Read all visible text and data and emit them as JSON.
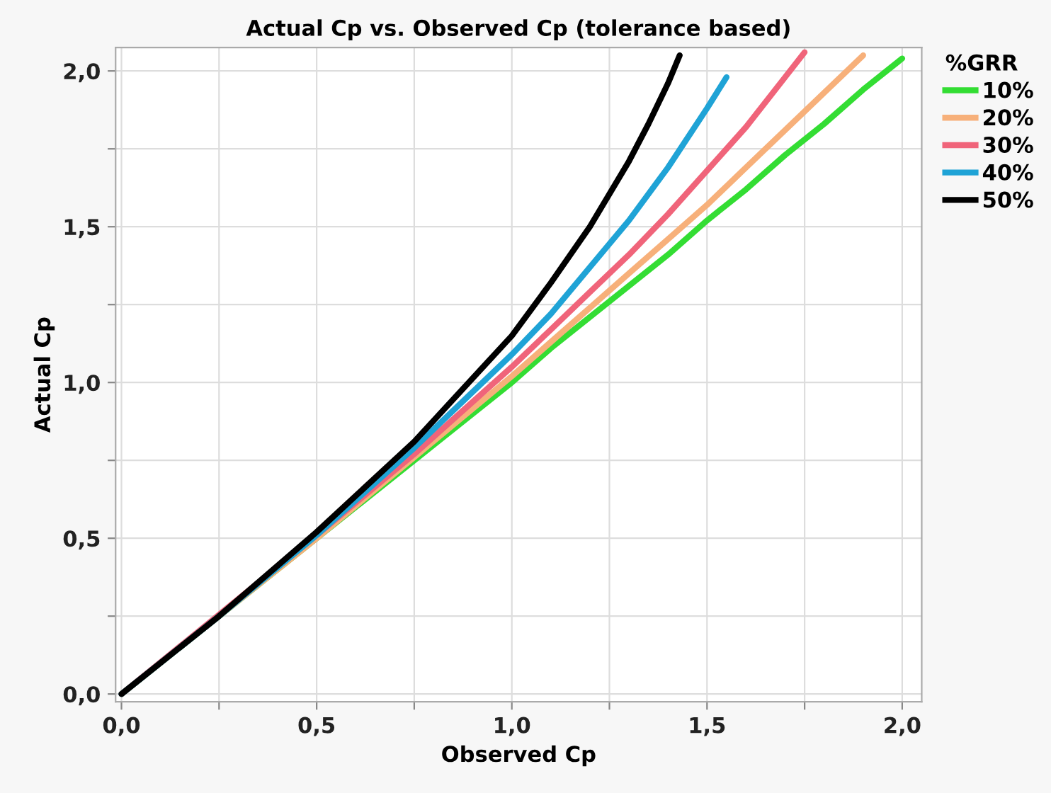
{
  "chart_data": {
    "type": "line",
    "title": "Actual Cp vs. Observed Cp (tolerance based)",
    "xlabel": "Observed Cp",
    "ylabel": "Actual Cp",
    "legend_title": "%GRR",
    "legend": "top right",
    "xlim": [
      -0.015,
      2.05
    ],
    "ylim": [
      -0.025,
      2.075
    ],
    "xticks": [
      {
        "value": 0,
        "label": "0,0"
      },
      {
        "value": 0.25,
        "label": null
      },
      {
        "value": 0.5,
        "label": "0,5"
      },
      {
        "value": 0.75,
        "label": null
      },
      {
        "value": 1.0,
        "label": "1,0"
      },
      {
        "value": 1.25,
        "label": null
      },
      {
        "value": 1.5,
        "label": "1,5"
      },
      {
        "value": 1.75,
        "label": null
      },
      {
        "value": 2.0,
        "label": "2,0"
      }
    ],
    "yticks": [
      {
        "value": 0,
        "label": "0,0"
      },
      {
        "value": 0.25,
        "label": null
      },
      {
        "value": 0.5,
        "label": "0,5"
      },
      {
        "value": 0.75,
        "label": null
      },
      {
        "value": 1.0,
        "label": "1,0"
      },
      {
        "value": 1.25,
        "label": null
      },
      {
        "value": 1.5,
        "label": "1,5"
      },
      {
        "value": 1.75,
        "label": null
      },
      {
        "value": 2.0,
        "label": "2,0"
      }
    ],
    "grid": true,
    "marker": "none",
    "line_style": "solid",
    "series": [
      {
        "name": "10%",
        "color": "#33dd33",
        "x": [
          0,
          0.25,
          0.75,
          1.0,
          1.1,
          1.2,
          1.3,
          1.4,
          1.5,
          1.6,
          1.7,
          1.8,
          1.9,
          2.0
        ],
        "values": [
          0,
          0.25,
          0.75,
          1.0,
          1.11,
          1.21,
          1.31,
          1.41,
          1.52,
          1.62,
          1.73,
          1.83,
          1.94,
          2.04
        ]
      },
      {
        "name": "20%",
        "color": "#f7b07a",
        "x": [
          0,
          0.25,
          0.5,
          0.75,
          1.0,
          1.1,
          1.2,
          1.3,
          1.4,
          1.5,
          1.6,
          1.7,
          1.8,
          1.9
        ],
        "values": [
          0,
          0.25,
          0.5,
          0.76,
          1.02,
          1.13,
          1.24,
          1.35,
          1.46,
          1.57,
          1.69,
          1.81,
          1.93,
          2.05
        ]
      },
      {
        "name": "30%",
        "color": "#f0647a",
        "x": [
          0,
          0.5,
          0.75,
          1.0,
          1.1,
          1.2,
          1.3,
          1.4,
          1.5,
          1.6,
          1.7,
          1.75
        ],
        "values": [
          0,
          0.51,
          0.77,
          1.05,
          1.17,
          1.29,
          1.41,
          1.54,
          1.68,
          1.82,
          1.98,
          2.06
        ]
      },
      {
        "name": "40%",
        "color": "#1fa3d6",
        "x": [
          0,
          0.25,
          0.5,
          0.75,
          1.0,
          1.1,
          1.2,
          1.3,
          1.4,
          1.5,
          1.55
        ],
        "values": [
          0,
          0.25,
          0.51,
          0.79,
          1.09,
          1.22,
          1.37,
          1.52,
          1.69,
          1.88,
          1.98
        ]
      },
      {
        "name": "50%",
        "color": "#000000",
        "x": [
          0,
          0.25,
          0.5,
          0.75,
          1.0,
          1.1,
          1.2,
          1.3,
          1.35,
          1.4,
          1.43
        ],
        "values": [
          0,
          0.25,
          0.52,
          0.81,
          1.15,
          1.32,
          1.5,
          1.71,
          1.83,
          1.96,
          2.05
        ]
      }
    ]
  }
}
